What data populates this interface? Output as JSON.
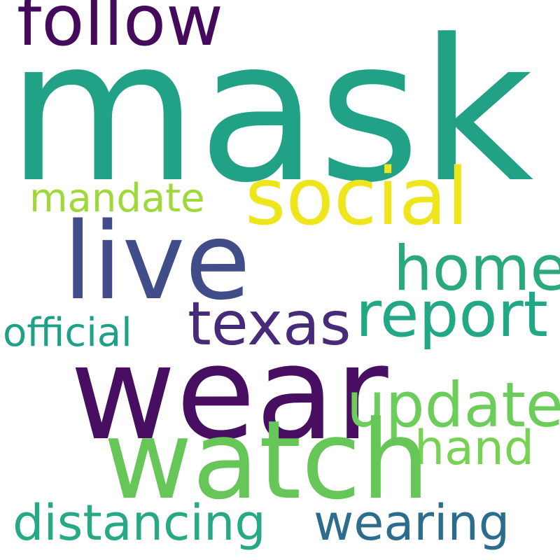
{
  "words": {
    "mask": {
      "text": "mask",
      "color": "#21a185"
    },
    "follow": {
      "text": "follow",
      "color": "#450a5b"
    },
    "wear": {
      "text": "wear",
      "color": "#470e61"
    },
    "live": {
      "text": "live",
      "color": "#404d89"
    },
    "watch": {
      "text": "watch",
      "color": "#67c658"
    },
    "social": {
      "text": "social",
      "color": "#eee51c"
    },
    "home": {
      "text": "home",
      "color": "#2aaa7c"
    },
    "report": {
      "text": "report",
      "color": "#22a884"
    },
    "texas": {
      "text": "texas",
      "color": "#472a7a"
    },
    "update": {
      "text": "update",
      "color": "#6ccd5a"
    },
    "hand": {
      "text": "hand",
      "color": "#77d153"
    },
    "mandate": {
      "text": "mandate",
      "color": "#9fd938"
    },
    "official": {
      "text": "official",
      "color": "#1fa187"
    },
    "distancing": {
      "text": "distancing",
      "color": "#26a984"
    },
    "wearing": {
      "text": "wearing",
      "color": "#2c6d8e"
    }
  }
}
